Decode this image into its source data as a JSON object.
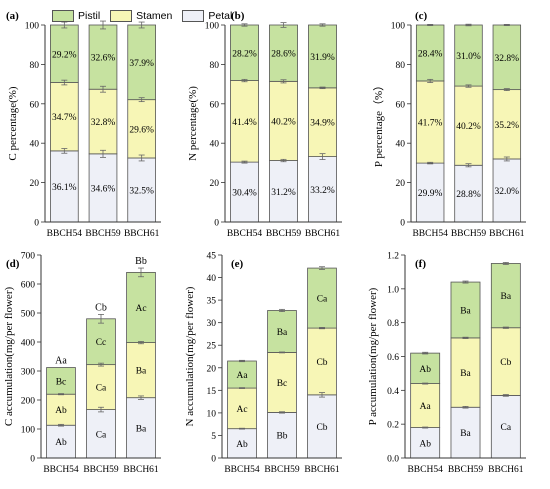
{
  "colors": {
    "Pistil": "#c6e2a0",
    "Stamen": "#f7f6b6",
    "Petal": "#eef0f7",
    "frame": "#555555"
  },
  "legend": {
    "items": [
      {
        "name": "Pistil",
        "label": "Pistil"
      },
      {
        "name": "Stamen",
        "label": "Stamen"
      },
      {
        "name": "Petal",
        "label": "Petal"
      }
    ]
  },
  "chart_data": [
    {
      "type": "bar",
      "stacked": true,
      "panel_label": "(a)",
      "categories": [
        "BBCH54",
        "BBCH59",
        "BBCH61"
      ],
      "ylabel": "C percentage(%)",
      "ylim": [
        0,
        100
      ],
      "yticks": [
        0,
        20,
        40,
        60,
        80,
        100
      ],
      "series": [
        {
          "name": "Petal",
          "values": [
            36.1,
            34.6,
            32.5
          ],
          "labels": [
            "36.1%",
            "34.6%",
            "32.5%"
          ]
        },
        {
          "name": "Stamen",
          "values": [
            34.7,
            32.8,
            29.6
          ],
          "labels": [
            "34.7%",
            "32.8%",
            "29.6%"
          ]
        },
        {
          "name": "Pistil",
          "values": [
            29.2,
            32.6,
            37.9
          ],
          "labels": [
            "29.2%",
            "32.6%",
            "37.9%"
          ]
        }
      ],
      "errors": [
        1.5,
        2,
        1.5
      ],
      "boundary_errors": [
        [
          1.2,
          1.2
        ],
        [
          1.8,
          1.5
        ],
        [
          1.5,
          1.0
        ]
      ],
      "letters": [],
      "grid": false
    },
    {
      "type": "bar",
      "stacked": true,
      "panel_label": "(b)",
      "categories": [
        "BBCH54",
        "BBCH59",
        "BBCH61"
      ],
      "ylabel": "N percentage(%)",
      "ylim": [
        0,
        100
      ],
      "yticks": [
        0,
        20,
        40,
        60,
        80,
        100
      ],
      "series": [
        {
          "name": "Petal",
          "values": [
            30.4,
            31.2,
            33.2
          ],
          "labels": [
            "30.4%",
            "31.2%",
            "33.2%"
          ]
        },
        {
          "name": "Stamen",
          "values": [
            41.4,
            40.2,
            34.9
          ],
          "labels": [
            "41.4%",
            "40.2%",
            "34.9%"
          ]
        },
        {
          "name": "Pistil",
          "values": [
            28.2,
            28.6,
            31.9
          ],
          "labels": [
            "28.2%",
            "28.6%",
            "31.9%"
          ]
        }
      ],
      "errors": [
        0.6,
        1.2,
        0.6
      ],
      "boundary_errors": [
        [
          0.5,
          0.6
        ],
        [
          0.6,
          0.8
        ],
        [
          1.5,
          0.4
        ]
      ],
      "letters": [],
      "grid": false
    },
    {
      "type": "bar",
      "stacked": true,
      "panel_label": "(c)",
      "categories": [
        "BBCH54",
        "BBCH59",
        "BBCH61"
      ],
      "ylabel": "P percentage（%）",
      "ylim": [
        0,
        100
      ],
      "yticks": [
        0,
        20,
        40,
        60,
        80,
        100
      ],
      "series": [
        {
          "name": "Petal",
          "values": [
            29.9,
            28.8,
            32.0
          ],
          "labels": [
            "29.9%",
            "28.8%",
            "32.0%"
          ]
        },
        {
          "name": "Stamen",
          "values": [
            41.7,
            40.2,
            35.2
          ],
          "labels": [
            "41.7%",
            "40.2%",
            "35.2%"
          ]
        },
        {
          "name": "Pistil",
          "values": [
            28.4,
            31.0,
            32.8
          ],
          "labels": [
            "28.4%",
            "31.0%",
            "32.8%"
          ]
        }
      ],
      "errors": [
        0.3,
        0.4,
        0.3
      ],
      "boundary_errors": [
        [
          0.4,
          0.8
        ],
        [
          0.8,
          0.6
        ],
        [
          1.0,
          0.5
        ]
      ],
      "letters": [],
      "grid": false
    },
    {
      "type": "bar",
      "stacked": true,
      "panel_label": "(d)",
      "categories": [
        "BBCH54",
        "BBCH59",
        "BBCH61"
      ],
      "ylabel": "C accumulation(mg/per flower)",
      "ylim": [
        0,
        700
      ],
      "yticks": [
        0,
        100,
        200,
        300,
        400,
        500,
        600,
        700
      ],
      "series": [
        {
          "name": "Petal",
          "values": [
            113,
            167,
            208
          ],
          "labels": [
            "Ab",
            "Ca",
            "Ba"
          ]
        },
        {
          "name": "Stamen",
          "values": [
            107,
            155,
            190
          ],
          "labels": [
            "Ab",
            "Ca",
            "Ba"
          ]
        },
        {
          "name": "Pistil",
          "values": [
            92,
            158,
            242
          ],
          "labels": [
            "Bc",
            "Cc",
            "Ac"
          ]
        }
      ],
      "errors": [
        0,
        15,
        15
      ],
      "boundary_errors": [
        [
          3,
          2
        ],
        [
          8,
          5
        ],
        [
          6,
          4
        ]
      ],
      "letters": [
        "Aa",
        "Cb",
        "Bb"
      ],
      "grid": false
    },
    {
      "type": "bar",
      "stacked": true,
      "panel_label": "(e)",
      "categories": [
        "BBCH54",
        "BBCH59",
        "BBCH61"
      ],
      "ylabel": "N accumulation(mg/per flower)",
      "ylim": [
        0,
        45
      ],
      "yticks": [
        0,
        5,
        10,
        15,
        20,
        25,
        30,
        35,
        40,
        45
      ],
      "series": [
        {
          "name": "Petal",
          "values": [
            6.5,
            10.1,
            14.0
          ],
          "labels": [
            "Ab",
            "Bb",
            "Cb"
          ]
        },
        {
          "name": "Stamen",
          "values": [
            9.0,
            13.3,
            14.8
          ],
          "labels": [
            "Ac",
            "Bc",
            "Cb"
          ]
        },
        {
          "name": "Pistil",
          "values": [
            6.0,
            9.3,
            13.3
          ],
          "labels": [
            "Aa",
            "Ba",
            "Ca"
          ]
        }
      ],
      "errors": [
        0.15,
        0.25,
        0.3
      ],
      "boundary_errors": [
        [
          0.1,
          0.1
        ],
        [
          0.15,
          0.1
        ],
        [
          0.5,
          0.15
        ]
      ],
      "letters": [],
      "grid": false
    },
    {
      "type": "bar",
      "stacked": true,
      "panel_label": "(f)",
      "categories": [
        "BBCH54",
        "BBCH59",
        "BBCH61"
      ],
      "ylabel": "P accumulation(mg/per flower)",
      "ylim": [
        0,
        1.2
      ],
      "yticks": [
        0.0,
        0.2,
        0.4,
        0.6,
        0.8,
        1.0,
        1.2
      ],
      "series": [
        {
          "name": "Petal",
          "values": [
            0.18,
            0.3,
            0.37
          ],
          "labels": [
            "Ab",
            "Ba",
            "Ca"
          ]
        },
        {
          "name": "Stamen",
          "values": [
            0.26,
            0.41,
            0.4
          ],
          "labels": [
            "Aa",
            "Ba",
            "Cb"
          ]
        },
        {
          "name": "Pistil",
          "values": [
            0.18,
            0.33,
            0.38
          ],
          "labels": [
            "Ab",
            "Ba",
            "Ba"
          ]
        }
      ],
      "errors": [
        0.005,
        0.006,
        0.006
      ],
      "boundary_errors": [
        [
          0.003,
          0.003
        ],
        [
          0.005,
          0.004
        ],
        [
          0.005,
          0.004
        ]
      ],
      "letters": [],
      "grid": false
    }
  ]
}
